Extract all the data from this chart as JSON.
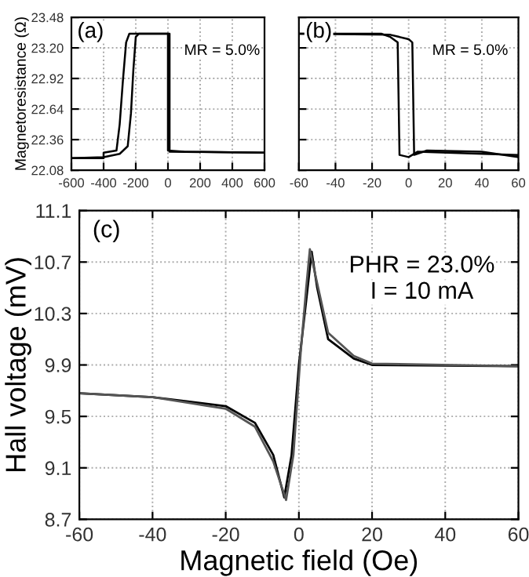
{
  "chart_data": [
    {
      "type": "line",
      "ylabel": "Magnetoresistance (Ω)",
      "annotations": [
        "(a)",
        "MR = 5.0%"
      ],
      "xlim": [
        -600,
        600
      ],
      "xticks": [
        -600,
        -400,
        -200,
        0,
        200,
        400,
        600
      ],
      "ylim": [
        22.08,
        23.48
      ],
      "yticks": [
        22.08,
        {
          "value": 22.36,
          "label": "22.36"
        },
        22.64,
        22.92,
        {
          "value": 23.2,
          "label": "23.20"
        },
        23.48
      ],
      "grid": true,
      "line_style": "solid",
      "marker": "none",
      "series": [
        {
          "color": "#000000",
          "x": [
            -600,
            -400,
            -400,
            -320,
            -300,
            -280,
            -260,
            -240,
            0,
            0,
            100,
            600
          ],
          "values": [
            22.19,
            22.19,
            22.24,
            22.26,
            22.5,
            22.9,
            23.25,
            23.33,
            23.33,
            22.26,
            22.25,
            22.24
          ]
        },
        {
          "color": "#000000",
          "x": [
            -600,
            -400,
            -300,
            -250,
            -230,
            -215,
            -200,
            -180,
            10,
            10,
            600
          ],
          "values": [
            22.19,
            22.2,
            22.23,
            22.3,
            22.6,
            23.0,
            23.3,
            23.33,
            23.33,
            22.25,
            22.24
          ]
        }
      ]
    },
    {
      "type": "line",
      "annotations": [
        "(b)",
        "MR = 5.0%"
      ],
      "xlim": [
        -60,
        60
      ],
      "xticks": [
        -60,
        -40,
        -20,
        0,
        20,
        40,
        60
      ],
      "ylim": [
        22.08,
        23.48
      ],
      "yticks": [
        22.08,
        22.36,
        22.64,
        22.92,
        23.2,
        23.48
      ],
      "tick_labels": "x",
      "grid": true,
      "line_style": "solid",
      "marker": "none",
      "series": [
        {
          "color": "#000000",
          "x": [
            -60,
            -15,
            -10,
            -6,
            -5,
            0,
            5,
            60
          ],
          "values": [
            23.33,
            23.33,
            23.3,
            23.25,
            22.22,
            22.2,
            22.25,
            22.22
          ]
        },
        {
          "color": "#000000",
          "x": [
            -60,
            -10,
            0,
            2,
            3,
            10,
            40,
            60
          ],
          "values": [
            23.33,
            23.32,
            23.28,
            23.25,
            22.22,
            22.26,
            22.25,
            22.2
          ]
        }
      ]
    },
    {
      "type": "line",
      "xlabel": "Magnetic field (Oe)",
      "ylabel": "Hall voltage (mV)",
      "annotations": [
        "(c)",
        "PHR = 23.0%",
        "I = 10 mA"
      ],
      "xlim": [
        -60,
        60
      ],
      "xticks": [
        -60,
        -40,
        -20,
        0,
        20,
        40,
        60
      ],
      "ylim": [
        8.7,
        11.1
      ],
      "yticks": [
        8.7,
        9.1,
        9.5,
        9.9,
        10.3,
        10.7,
        11.1
      ],
      "grid": true,
      "line_style": "solid",
      "marker": "none",
      "series": [
        {
          "color": "#000000",
          "x": [
            -60,
            -40,
            -20,
            -12,
            -7,
            -4,
            -2,
            0,
            2,
            3.5,
            5,
            8,
            15,
            20,
            60
          ],
          "values": [
            9.68,
            9.65,
            9.58,
            9.45,
            9.2,
            8.87,
            9.2,
            9.9,
            10.4,
            10.78,
            10.5,
            10.1,
            9.95,
            9.9,
            9.89
          ]
        },
        {
          "color": "#555555",
          "x": [
            -60,
            -40,
            -20,
            -12,
            -7,
            -3.5,
            -1.5,
            0.5,
            2,
            3,
            4.5,
            8,
            15,
            20,
            60
          ],
          "values": [
            9.68,
            9.65,
            9.56,
            9.42,
            9.15,
            8.85,
            9.2,
            10.0,
            10.5,
            10.8,
            10.6,
            10.15,
            9.97,
            9.91,
            9.89
          ]
        }
      ]
    }
  ]
}
